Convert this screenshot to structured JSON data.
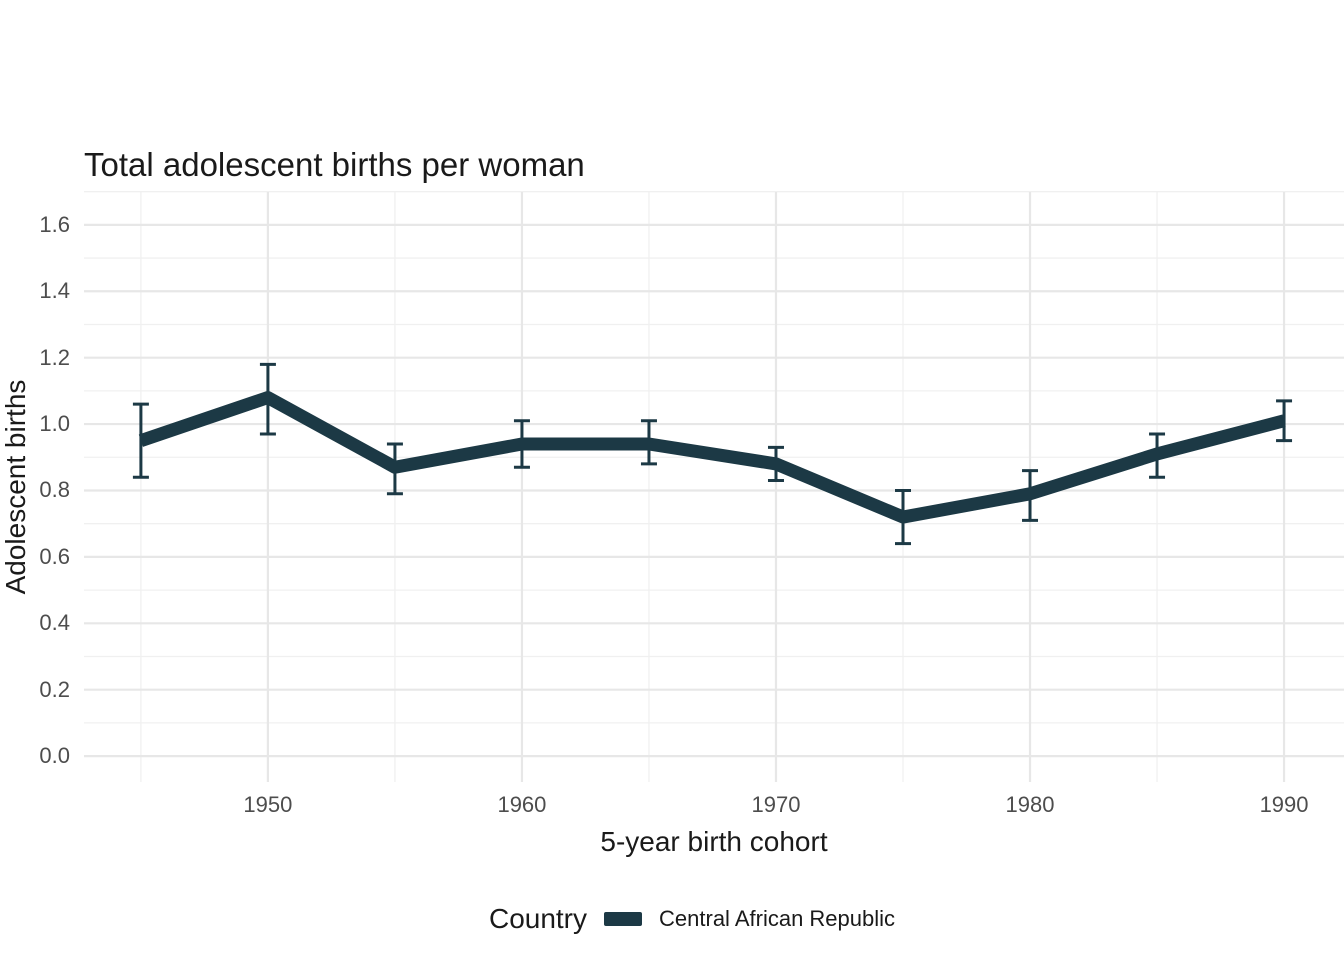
{
  "chart_data": {
    "type": "line",
    "title": "Total adolescent births per woman",
    "xlabel": "5-year birth cohort",
    "ylabel": "Adolescent births",
    "legend": {
      "title": "Country",
      "position": "bottom",
      "entries": [
        {
          "label": "Central African Republic",
          "color": "#1c3945"
        }
      ]
    },
    "x": [
      1945,
      1950,
      1955,
      1960,
      1965,
      1970,
      1975,
      1980,
      1985,
      1990
    ],
    "series": [
      {
        "name": "Central African Republic",
        "color": "#1c3945",
        "values": [
          0.95,
          1.08,
          0.87,
          0.94,
          0.94,
          0.88,
          0.72,
          0.79,
          0.91,
          1.01
        ],
        "ci_low": [
          0.84,
          0.97,
          0.79,
          0.87,
          0.88,
          0.83,
          0.64,
          0.71,
          0.84,
          0.95
        ],
        "ci_high": [
          1.06,
          1.18,
          0.94,
          1.01,
          1.01,
          0.93,
          0.8,
          0.86,
          0.97,
          1.07
        ]
      }
    ],
    "x_tick_labels": [
      "1950",
      "1960",
      "1970",
      "1980",
      "1990"
    ],
    "x_minor_ticks": [
      1945,
      1955,
      1965,
      1975,
      1985
    ],
    "y_tick_labels": [
      "0.0",
      "0.2",
      "0.4",
      "0.6",
      "0.8",
      "1.0",
      "1.2",
      "1.4",
      "1.6"
    ],
    "y_minor_ticks": [
      0.1,
      0.3,
      0.5,
      0.7,
      0.9,
      1.1,
      1.3,
      1.5,
      1.7
    ],
    "xlim": [
      1942.76,
      1992.36
    ],
    "ylim": [
      -0.078,
      1.699
    ],
    "grid": true,
    "grid_major_color": "#e7e7e7",
    "grid_minor_color": "#f0f0f0",
    "background_color": "#ffffff",
    "tick_label_color": "#4d4d4d"
  }
}
